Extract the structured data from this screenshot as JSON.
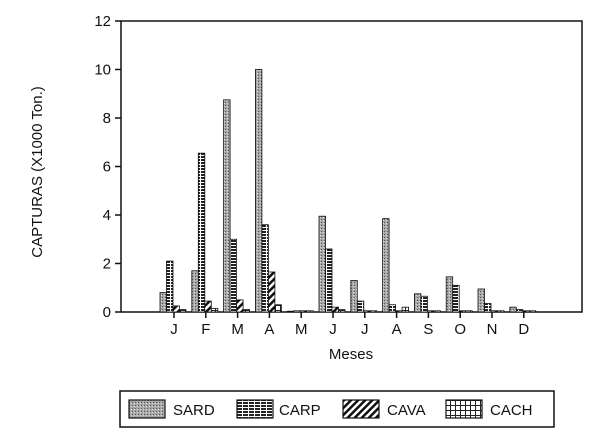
{
  "chart_data": {
    "type": "bar",
    "categories": [
      "J",
      "F",
      "M",
      "A",
      "M",
      "J",
      "J",
      "A",
      "S",
      "O",
      "N",
      "D"
    ],
    "series": [
      {
        "name": "SARD",
        "values": [
          0.8,
          1.7,
          8.75,
          10.0,
          0.0,
          3.95,
          1.3,
          3.85,
          0.75,
          1.45,
          0.95,
          0.2
        ]
      },
      {
        "name": "CARP",
        "values": [
          2.1,
          6.55,
          3.0,
          3.6,
          0.05,
          2.6,
          0.45,
          0.3,
          0.65,
          1.1,
          0.35,
          0.1
        ]
      },
      {
        "name": "CAVA",
        "values": [
          0.25,
          0.45,
          0.5,
          1.65,
          0.05,
          0.2,
          0.05,
          0.05,
          0.05,
          0.05,
          0.05,
          0.05
        ]
      },
      {
        "name": "CACH",
        "values": [
          0.1,
          0.15,
          0.1,
          0.3,
          0.05,
          0.1,
          0.05,
          0.2,
          0.05,
          0.05,
          0.05,
          0.05
        ]
      }
    ],
    "xlabel": "Meses",
    "ylabel": "CAPTURAS (X1000 Ton.)",
    "ylim": [
      0,
      12
    ],
    "yticks": [
      "0",
      "2",
      "4",
      "6",
      "8",
      "10",
      "12"
    ],
    "legend_position": "bottom",
    "grid": false
  }
}
